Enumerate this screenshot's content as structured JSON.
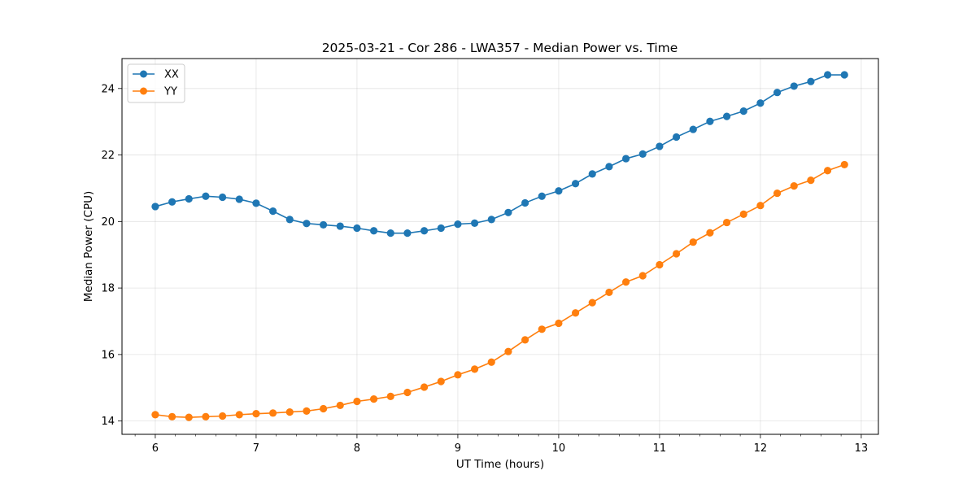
{
  "chart_data": {
    "type": "line",
    "title": "2025-03-21 - Cor 286 - LWA357 - Median Power vs. Time",
    "xlabel": "UT Time (hours)",
    "ylabel": "Median Power (CPU)",
    "xlim": [
      5.67,
      13.17
    ],
    "ylim": [
      13.6,
      24.9
    ],
    "x_ticks": [
      6,
      7,
      8,
      9,
      10,
      11,
      12,
      13
    ],
    "x_tick_labels": [
      "6",
      "7",
      "8",
      "9",
      "10",
      "11",
      "12",
      "13"
    ],
    "y_ticks": [
      14,
      16,
      18,
      20,
      22,
      24
    ],
    "y_tick_labels": [
      "14",
      "16",
      "18",
      "20",
      "22",
      "24"
    ],
    "grid": true,
    "legend_position": "top-left",
    "x": [
      6.0,
      6.1667,
      6.3333,
      6.5,
      6.6667,
      6.8333,
      7.0,
      7.1667,
      7.3333,
      7.5,
      7.6667,
      7.8333,
      8.0,
      8.1667,
      8.3333,
      8.5,
      8.6667,
      8.8333,
      9.0,
      9.1667,
      9.3333,
      9.5,
      9.6667,
      9.8333,
      10.0,
      10.1667,
      10.3333,
      10.5,
      10.6667,
      10.8333,
      11.0,
      11.1667,
      11.3333,
      11.5,
      11.6667,
      11.8333,
      12.0,
      12.1667,
      12.3333,
      12.5,
      12.6667,
      12.8333
    ],
    "series": [
      {
        "name": "XX",
        "color": "#1f77b4",
        "values": [
          20.45,
          20.59,
          20.68,
          20.76,
          20.73,
          20.67,
          20.55,
          20.31,
          20.06,
          19.94,
          19.9,
          19.86,
          19.8,
          19.72,
          19.65,
          19.65,
          19.72,
          19.8,
          19.92,
          19.95,
          20.06,
          20.27,
          20.56,
          20.76,
          20.92,
          21.14,
          21.43,
          21.65,
          21.89,
          22.03,
          22.26,
          22.54,
          22.77,
          23.01,
          23.16,
          23.32,
          23.56,
          23.88,
          24.07,
          24.21,
          24.41,
          24.41
        ]
      },
      {
        "name": "YY",
        "color": "#ff7f0e",
        "values": [
          14.19,
          14.13,
          14.11,
          14.13,
          14.15,
          14.19,
          14.22,
          14.24,
          14.27,
          14.3,
          14.37,
          14.47,
          14.59,
          14.66,
          14.74,
          14.86,
          15.02,
          15.19,
          15.39,
          15.56,
          15.77,
          16.09,
          16.44,
          16.76,
          16.94,
          17.25,
          17.56,
          17.87,
          18.18,
          18.37,
          18.7,
          19.03,
          19.38,
          19.66,
          19.97,
          20.22,
          20.48,
          20.85,
          21.07,
          21.24,
          21.53,
          21.71
        ]
      }
    ]
  }
}
